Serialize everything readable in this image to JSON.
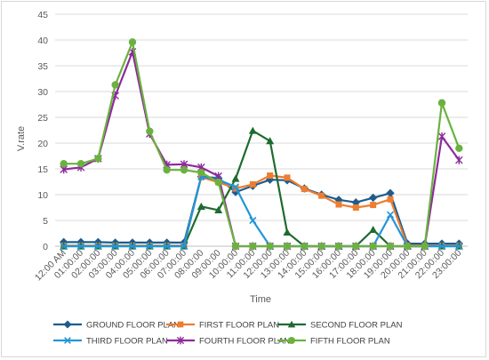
{
  "chart_data": {
    "type": "line",
    "title": "",
    "xlabel": "Time",
    "ylabel": "V.rate",
    "ylim": [
      0,
      45
    ],
    "yticks": [
      0,
      5,
      10,
      15,
      20,
      25,
      30,
      35,
      40,
      45
    ],
    "grid": true,
    "legend_position": "bottom",
    "categories": [
      "12:00 AM",
      "01:00:00",
      "02:00:00",
      "03:00:00",
      "04:00:00",
      "05:00:00",
      "06:00:00",
      "07:00:00",
      "08:00:00",
      "09:00:00",
      "10:00:00",
      "11:00:00",
      "12:00:00",
      "13:00:00",
      "14:00:00",
      "15:00:00",
      "16:00:00",
      "17:00:00",
      "18:00:00",
      "19:00:00",
      "20:00:00",
      "21:00:00",
      "22:00:00",
      "23:00:00"
    ],
    "series": [
      {
        "name": "GROUND FLOOR PLAN",
        "color": "#1f5c8b",
        "marker": "diamond",
        "values": [
          0.8,
          0.8,
          0.8,
          0.7,
          0.7,
          0.7,
          0.7,
          0.7,
          13.5,
          13.2,
          10.5,
          11.7,
          12.9,
          12.8,
          11.2,
          10.0,
          9.0,
          8.5,
          9.4,
          10.3,
          0.5,
          0.5,
          0.5,
          0.5
        ]
      },
      {
        "name": "FIRST FLOOR PLAN",
        "color": "#ed7d31",
        "marker": "square",
        "values": [
          0.1,
          0.1,
          0.1,
          0.1,
          0.1,
          0.1,
          0.1,
          0.1,
          13.4,
          12.4,
          11.2,
          12.0,
          13.7,
          13.3,
          11.1,
          9.8,
          8.1,
          7.5,
          8.0,
          9.1,
          0.1,
          0.1,
          0.1,
          0.1
        ]
      },
      {
        "name": "SECOND FLOOR PLAN",
        "color": "#1e6b2f",
        "marker": "triangle",
        "values": [
          0,
          0,
          0,
          0,
          0,
          0,
          0,
          0,
          7.7,
          7.0,
          13.1,
          22.4,
          20.4,
          2.7,
          0,
          0,
          0,
          0,
          3.2,
          0,
          0,
          0,
          0,
          0
        ]
      },
      {
        "name": "THIRD FLOOR PLAN",
        "color": "#2196d8",
        "marker": "x",
        "values": [
          0,
          0,
          0,
          0,
          0,
          0,
          0,
          0,
          13.5,
          12.9,
          11.5,
          5.0,
          0,
          0,
          0,
          0,
          0,
          0,
          0,
          6.1,
          0,
          0,
          0,
          0
        ]
      },
      {
        "name": "FOURTH FLOOR PLAN",
        "color": "#8e2a9b",
        "marker": "star",
        "values": [
          14.9,
          15.3,
          17.0,
          29.2,
          37.7,
          21.8,
          15.8,
          15.9,
          15.3,
          13.6,
          0,
          0,
          0,
          0,
          0,
          0,
          0,
          0,
          0,
          0,
          0,
          0,
          21.3,
          16.7
        ]
      },
      {
        "name": "FIFTH FLOOR PLAN",
        "color": "#6ab23f",
        "marker": "circle",
        "values": [
          16.0,
          16.0,
          17.0,
          31.3,
          39.6,
          22.3,
          14.8,
          14.8,
          14.3,
          12.4,
          0,
          0,
          0,
          0,
          0,
          0,
          0,
          0,
          0,
          0,
          0,
          0,
          27.8,
          19.0
        ]
      }
    ]
  }
}
